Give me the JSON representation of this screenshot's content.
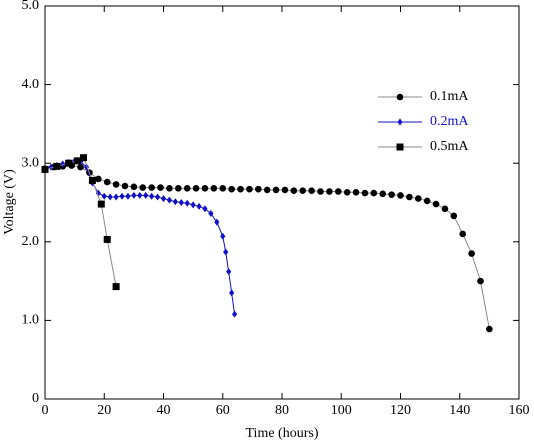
{
  "chart_data": {
    "type": "line",
    "xlabel": "Time (hours)",
    "ylabel": "Voltage (V)",
    "xlim": [
      0,
      160
    ],
    "xticks": [
      0,
      20,
      40,
      60,
      80,
      100,
      120,
      140,
      160
    ],
    "ylim": [
      0,
      5
    ],
    "yticks": [
      0,
      {
        "value": 1,
        "label": "1.0"
      },
      {
        "value": 2,
        "label": "2.0"
      },
      {
        "value": 3,
        "label": "3.0"
      },
      {
        "value": 4,
        "label": "4.0"
      },
      {
        "value": 5,
        "label": "5.0"
      }
    ],
    "legend": "upper right",
    "series": [
      {
        "name": "0.1mA",
        "color": "#000000",
        "line_color": "#888888",
        "marker": "circle",
        "x": [
          0,
          3,
          6,
          9,
          12,
          15,
          18,
          21,
          24,
          27,
          30,
          33,
          36,
          39,
          42,
          45,
          48,
          51,
          54,
          57,
          60,
          63,
          66,
          69,
          72,
          75,
          78,
          81,
          84,
          87,
          90,
          93,
          96,
          99,
          102,
          105,
          108,
          111,
          114,
          117,
          120,
          123,
          126,
          129,
          132,
          135,
          138,
          141,
          144,
          147,
          150
        ],
        "values": [
          2.93,
          2.95,
          2.96,
          2.97,
          2.95,
          2.88,
          2.8,
          2.76,
          2.73,
          2.71,
          2.7,
          2.69,
          2.69,
          2.69,
          2.68,
          2.68,
          2.68,
          2.68,
          2.68,
          2.68,
          2.68,
          2.67,
          2.67,
          2.67,
          2.67,
          2.66,
          2.66,
          2.66,
          2.65,
          2.65,
          2.65,
          2.64,
          2.64,
          2.64,
          2.63,
          2.63,
          2.62,
          2.62,
          2.61,
          2.6,
          2.59,
          2.57,
          2.55,
          2.52,
          2.48,
          2.42,
          2.33,
          2.1,
          1.85,
          1.5,
          0.89
        ]
      },
      {
        "name": "0.2mA",
        "color": "#1010c8",
        "line_color": "#1010c8",
        "marker": "diamond",
        "x": [
          0,
          2,
          4,
          6,
          8,
          10,
          12,
          14,
          16,
          18,
          20,
          22,
          24,
          26,
          28,
          30,
          32,
          34,
          36,
          38,
          40,
          42,
          44,
          46,
          48,
          50,
          52,
          54,
          56,
          58,
          60,
          61,
          62,
          63,
          64
        ],
        "values": [
          2.93,
          2.95,
          2.97,
          2.99,
          3.01,
          3.03,
          3.02,
          2.95,
          2.75,
          2.62,
          2.58,
          2.57,
          2.57,
          2.58,
          2.58,
          2.59,
          2.59,
          2.59,
          2.58,
          2.57,
          2.55,
          2.53,
          2.51,
          2.5,
          2.49,
          2.47,
          2.45,
          2.42,
          2.36,
          2.25,
          2.07,
          1.87,
          1.62,
          1.35,
          1.08
        ]
      },
      {
        "name": "0.5mA",
        "color": "#000000",
        "line_color": "#888888",
        "marker": "square",
        "x": [
          0,
          4,
          8,
          11,
          13,
          16,
          19,
          21,
          24
        ],
        "values": [
          2.92,
          2.96,
          3.0,
          3.03,
          3.07,
          2.78,
          2.48,
          2.03,
          1.43
        ]
      }
    ]
  }
}
